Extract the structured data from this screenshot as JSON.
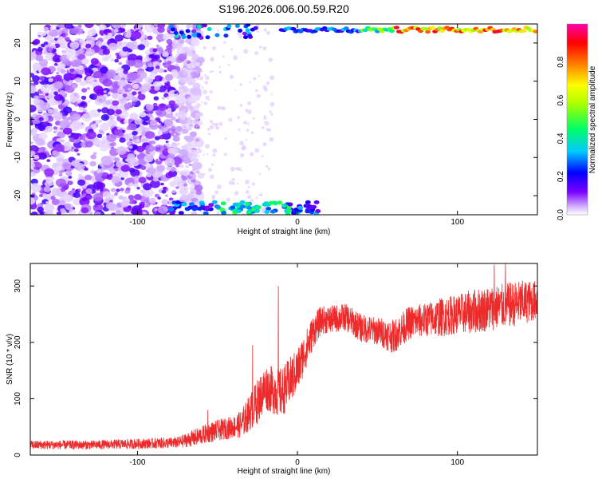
{
  "title": "S196.2026.006.00.59.R20",
  "chart_data": [
    {
      "type": "heatmap",
      "xlabel": "Height of straight line (km)",
      "ylabel": "Frequency (Hz)",
      "xlim": [
        -167,
        150
      ],
      "ylim": [
        -25,
        25
      ],
      "x_ticks": [
        -100,
        0,
        100
      ],
      "y_ticks": [
        -20,
        -10,
        0,
        10,
        20
      ],
      "colorbar": {
        "label": "Normalized spectral amplitude",
        "range": [
          0,
          1
        ],
        "ticks": [
          "0.0",
          "0.2",
          "0.4",
          "0.6",
          "0.8"
        ],
        "tick_values": [
          0,
          0.2,
          0.4,
          0.6,
          0.8
        ],
        "colormap": [
          "#ffffff",
          "#d6b8ff",
          "#7a00ff",
          "#0000ff",
          "#00c8ff",
          "#00ff66",
          "#aaff00",
          "#ffff00",
          "#ff8800",
          "#ff0000",
          "#ff00aa"
        ]
      },
      "features": {
        "scatter_region_x": [
          -167,
          -75
        ],
        "upper_edge_band_x": [
          -10,
          150
        ],
        "upper_edge_frequency": 23.5,
        "lower_edge_blobs_x": [
          -50,
          -5
        ],
        "lower_edge_frequency": -23.5
      }
    },
    {
      "type": "line",
      "xlabel": "Height of straight line (km)",
      "ylabel": "SNR (10 * v/v)",
      "xlim": [
        -167,
        150
      ],
      "ylim": [
        0,
        340
      ],
      "x_ticks": [
        -100,
        0,
        100
      ],
      "y_ticks": [
        0,
        100,
        200,
        300
      ],
      "series": [
        {
          "color": "#ee2a2a",
          "trend_x": [
            -167,
            -130,
            -100,
            -75,
            -65,
            -55,
            -40,
            -35,
            -25,
            -20,
            -10,
            0,
            10,
            15,
            20,
            30,
            40,
            50,
            60,
            70,
            80,
            90,
            100,
            110,
            120,
            130,
            140,
            150
          ],
          "trend_y": [
            18,
            18,
            20,
            22,
            30,
            40,
            50,
            55,
            95,
            120,
            110,
            150,
            220,
            240,
            240,
            245,
            225,
            220,
            210,
            235,
            240,
            245,
            250,
            255,
            260,
            265,
            270,
            275
          ],
          "noise_amplitude": [
            8,
            8,
            9,
            10,
            15,
            18,
            20,
            25,
            40,
            40,
            45,
            40,
            30,
            25,
            25,
            25,
            25,
            25,
            30,
            30,
            30,
            35,
            35,
            40,
            40,
            40,
            40,
            35
          ],
          "spikes": [
            {
              "x": -12,
              "y": 300
            },
            {
              "x": -28,
              "y": 195
            },
            {
              "x": -56,
              "y": 80
            },
            {
              "x": 123,
              "y": 338
            },
            {
              "x": 130,
              "y": 340
            }
          ]
        }
      ]
    }
  ]
}
